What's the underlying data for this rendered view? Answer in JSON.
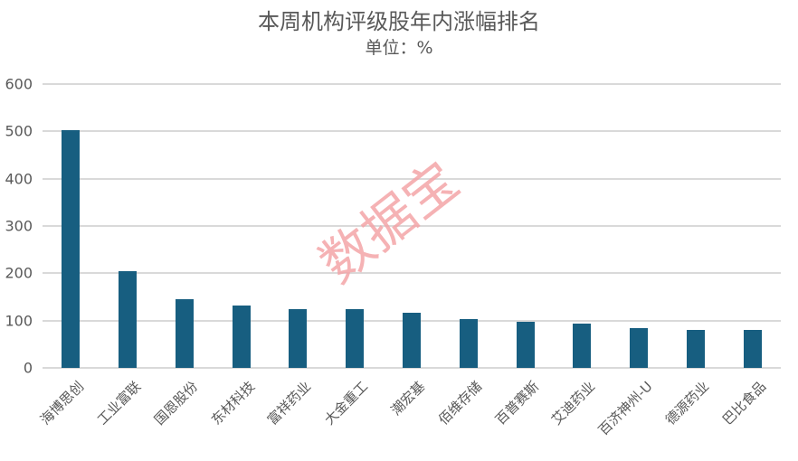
{
  "chart_data": {
    "type": "bar",
    "title": "本周机构评级股年内涨幅排名",
    "subtitle": "单位：%",
    "xlabel": "",
    "ylabel": "",
    "ylim": [
      0,
      600
    ],
    "yticks": [
      0,
      100,
      200,
      300,
      400,
      500,
      600
    ],
    "grid": true,
    "legend": null,
    "bar_color": "#175e80",
    "categories": [
      "海博思创",
      "工业富联",
      "国恩股份",
      "东材科技",
      "富祥药业",
      "大金重工",
      "潮宏基",
      "佰维存储",
      "百普赛斯",
      "艾迪药业",
      "百济神州-U",
      "德源药业",
      "巴比食品"
    ],
    "values": [
      502,
      204,
      145,
      132,
      124,
      124,
      117,
      103,
      97,
      94,
      84,
      80,
      80
    ]
  },
  "watermark": "数据宝"
}
